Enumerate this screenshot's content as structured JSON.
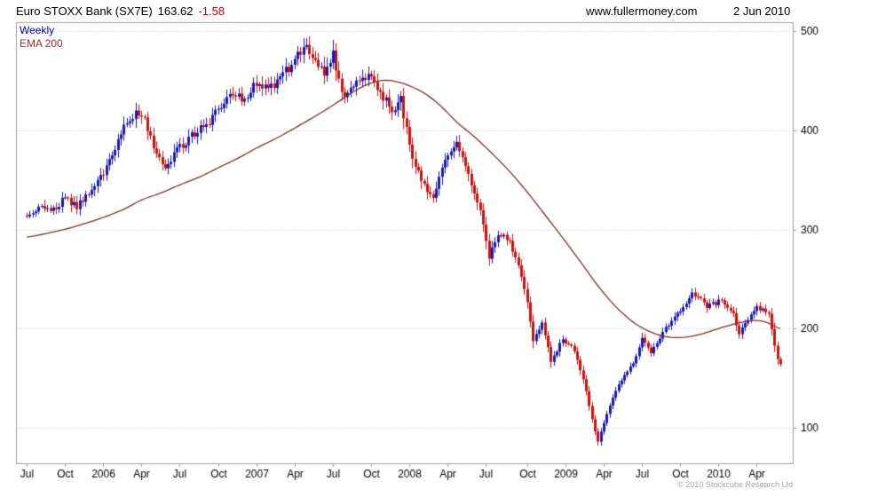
{
  "header": {
    "title": "Euro STOXX Bank (SX7E)",
    "last_price": "163.62",
    "change": "-1.58",
    "website": "www.fullermoney.com",
    "date": "2 Jun 2010"
  },
  "legend": {
    "weekly_label": "Weekly",
    "ema_label": "EMA 200"
  },
  "footer": {
    "copyright": "© 2010 Stockcube Research Ltd"
  },
  "colors": {
    "up_candle": "#1a1ab4",
    "down_candle": "#cc1111",
    "ema_line": "#7d2e2e",
    "change_text": "#cc0000",
    "weekly_label_text": "#0000bb",
    "grid": "#c4c4c4",
    "border": "#a0a0a0",
    "axis_text": "#000000",
    "copyright_text": "#a6a6a6",
    "background": "#ffffff"
  },
  "chart_data": {
    "type": "candlestick",
    "title": "Euro STOXX Bank (SX7E) 163.62 -1.58",
    "timeframe": "Weekly",
    "overlay": "EMA 200",
    "last_price": 163.62,
    "change": -1.58,
    "x_range": "Jul 2005 - Jun 2010",
    "y_ticks": [
      100,
      200,
      300,
      400,
      500
    ],
    "ylim": [
      60,
      510
    ],
    "grid": "horizontal-dotted",
    "legend_position": "top-left",
    "weeks_total": 257,
    "x_ticks": [
      {
        "label": "Jul",
        "week": 0
      },
      {
        "label": "Oct",
        "week": 13
      },
      {
        "label": "2006",
        "week": 26
      },
      {
        "label": "Apr",
        "week": 39
      },
      {
        "label": "Jul",
        "week": 52
      },
      {
        "label": "Oct",
        "week": 65
      },
      {
        "label": "2007",
        "week": 78
      },
      {
        "label": "Apr",
        "week": 91
      },
      {
        "label": "Jul",
        "week": 104
      },
      {
        "label": "Oct",
        "week": 117
      },
      {
        "label": "2008",
        "week": 130
      },
      {
        "label": "Apr",
        "week": 143
      },
      {
        "label": "Jul",
        "week": 156
      },
      {
        "label": "Oct",
        "week": 170
      },
      {
        "label": "2009",
        "week": 183
      },
      {
        "label": "Apr",
        "week": 196
      },
      {
        "label": "Jul",
        "week": 209
      },
      {
        "label": "Oct",
        "week": 222
      },
      {
        "label": "2010",
        "week": 235
      },
      {
        "label": "Apr",
        "week": 248
      }
    ],
    "price_anchors": [
      [
        0,
        312
      ],
      [
        4,
        324
      ],
      [
        8,
        316
      ],
      [
        13,
        333
      ],
      [
        17,
        323
      ],
      [
        22,
        342
      ],
      [
        26,
        358
      ],
      [
        30,
        382
      ],
      [
        34,
        408
      ],
      [
        37,
        419
      ],
      [
        40,
        410
      ],
      [
        44,
        377
      ],
      [
        47,
        364
      ],
      [
        52,
        383
      ],
      [
        58,
        399
      ],
      [
        62,
        408
      ],
      [
        65,
        420
      ],
      [
        70,
        436
      ],
      [
        74,
        431
      ],
      [
        78,
        448
      ],
      [
        82,
        441
      ],
      [
        86,
        453
      ],
      [
        90,
        466
      ],
      [
        95,
        489
      ],
      [
        98,
        467
      ],
      [
        101,
        459
      ],
      [
        104,
        477
      ],
      [
        108,
        429
      ],
      [
        112,
        450
      ],
      [
        116,
        457
      ],
      [
        120,
        438
      ],
      [
        124,
        421
      ],
      [
        127,
        431
      ],
      [
        131,
        372
      ],
      [
        134,
        349
      ],
      [
        138,
        331
      ],
      [
        142,
        371
      ],
      [
        146,
        387
      ],
      [
        150,
        356
      ],
      [
        154,
        317
      ],
      [
        157,
        272
      ],
      [
        160,
        297
      ],
      [
        164,
        288
      ],
      [
        167,
        262
      ],
      [
        170,
        229
      ],
      [
        172,
        186
      ],
      [
        175,
        206
      ],
      [
        178,
        168
      ],
      [
        182,
        189
      ],
      [
        186,
        178
      ],
      [
        190,
        138
      ],
      [
        192,
        108
      ],
      [
        194,
        86
      ],
      [
        197,
        115
      ],
      [
        200,
        138
      ],
      [
        203,
        152
      ],
      [
        206,
        166
      ],
      [
        209,
        190
      ],
      [
        212,
        176
      ],
      [
        215,
        190
      ],
      [
        218,
        205
      ],
      [
        221,
        214
      ],
      [
        224,
        226
      ],
      [
        226,
        238
      ],
      [
        228,
        232
      ],
      [
        231,
        222
      ],
      [
        234,
        226
      ],
      [
        236,
        230
      ],
      [
        238,
        222
      ],
      [
        240,
        214
      ],
      [
        242,
        196
      ],
      [
        244,
        206
      ],
      [
        246,
        214
      ],
      [
        248,
        222
      ],
      [
        250,
        218
      ],
      [
        252,
        214
      ],
      [
        253,
        198
      ],
      [
        254,
        183
      ],
      [
        255,
        170
      ],
      [
        256,
        164
      ]
    ],
    "ema_anchors": [
      [
        0,
        292
      ],
      [
        7,
        296
      ],
      [
        13,
        300
      ],
      [
        20,
        306
      ],
      [
        26,
        312
      ],
      [
        33,
        320
      ],
      [
        39,
        330
      ],
      [
        46,
        337
      ],
      [
        52,
        345
      ],
      [
        59,
        353
      ],
      [
        65,
        362
      ],
      [
        72,
        372
      ],
      [
        78,
        382
      ],
      [
        85,
        392
      ],
      [
        91,
        402
      ],
      [
        98,
        414
      ],
      [
        104,
        425
      ],
      [
        110,
        437
      ],
      [
        114,
        444
      ],
      [
        118,
        449
      ],
      [
        122,
        451
      ],
      [
        126,
        449
      ],
      [
        131,
        444
      ],
      [
        136,
        436
      ],
      [
        141,
        424
      ],
      [
        146,
        408
      ],
      [
        152,
        394
      ],
      [
        158,
        377
      ],
      [
        164,
        359
      ],
      [
        170,
        338
      ],
      [
        176,
        315
      ],
      [
        182,
        292
      ],
      [
        188,
        268
      ],
      [
        194,
        243
      ],
      [
        200,
        222
      ],
      [
        206,
        206
      ],
      [
        212,
        196
      ],
      [
        218,
        191
      ],
      [
        224,
        191
      ],
      [
        230,
        195
      ],
      [
        236,
        201
      ],
      [
        242,
        206
      ],
      [
        248,
        209
      ],
      [
        252,
        206
      ],
      [
        256,
        199
      ]
    ]
  }
}
